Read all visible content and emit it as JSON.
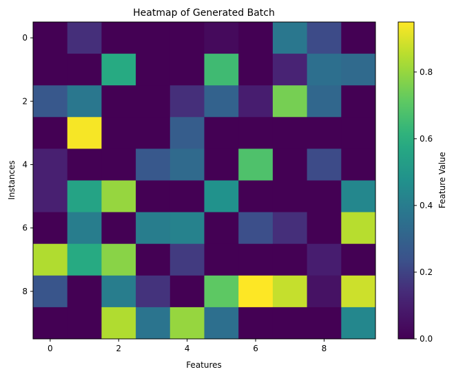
{
  "chart_data": {
    "type": "heatmap",
    "title": "Heatmap of Generated Batch",
    "xlabel": "Features",
    "ylabel": "Instances",
    "colorbar_label": "Feature Value",
    "x_ticks": [
      0,
      2,
      4,
      6,
      8
    ],
    "y_ticks": [
      0,
      2,
      4,
      6,
      8
    ],
    "colorbar_ticks": [
      0.0,
      0.2,
      0.4,
      0.6,
      0.8
    ],
    "colorbar_range": [
      0.0,
      0.95
    ],
    "colormap": "viridis",
    "rows": 10,
    "cols": 10,
    "values": [
      [
        0.0,
        0.15,
        0.0,
        0.0,
        0.0,
        0.03,
        0.0,
        0.38,
        0.22,
        0.0
      ],
      [
        0.0,
        0.0,
        0.58,
        0.0,
        0.0,
        0.65,
        0.0,
        0.12,
        0.35,
        0.33
      ],
      [
        0.26,
        0.38,
        0.0,
        0.0,
        0.15,
        0.3,
        0.1,
        0.75,
        0.32,
        0.0
      ],
      [
        0.0,
        0.94,
        0.0,
        0.0,
        0.28,
        0.0,
        0.0,
        0.0,
        0.0,
        0.0
      ],
      [
        0.11,
        0.0,
        0.0,
        0.26,
        0.33,
        0.0,
        0.68,
        0.0,
        0.22,
        0.0
      ],
      [
        0.11,
        0.55,
        0.8,
        0.0,
        0.0,
        0.48,
        0.0,
        0.0,
        0.0,
        0.44
      ],
      [
        0.0,
        0.4,
        0.0,
        0.4,
        0.42,
        0.0,
        0.23,
        0.15,
        0.0,
        0.85
      ],
      [
        0.84,
        0.58,
        0.78,
        0.0,
        0.18,
        0.0,
        0.0,
        0.0,
        0.1,
        0.0
      ],
      [
        0.25,
        0.0,
        0.4,
        0.16,
        0.0,
        0.71,
        0.95,
        0.87,
        0.06,
        0.88
      ],
      [
        0.0,
        0.0,
        0.84,
        0.37,
        0.8,
        0.35,
        0.0,
        0.0,
        0.0,
        0.44
      ]
    ]
  }
}
